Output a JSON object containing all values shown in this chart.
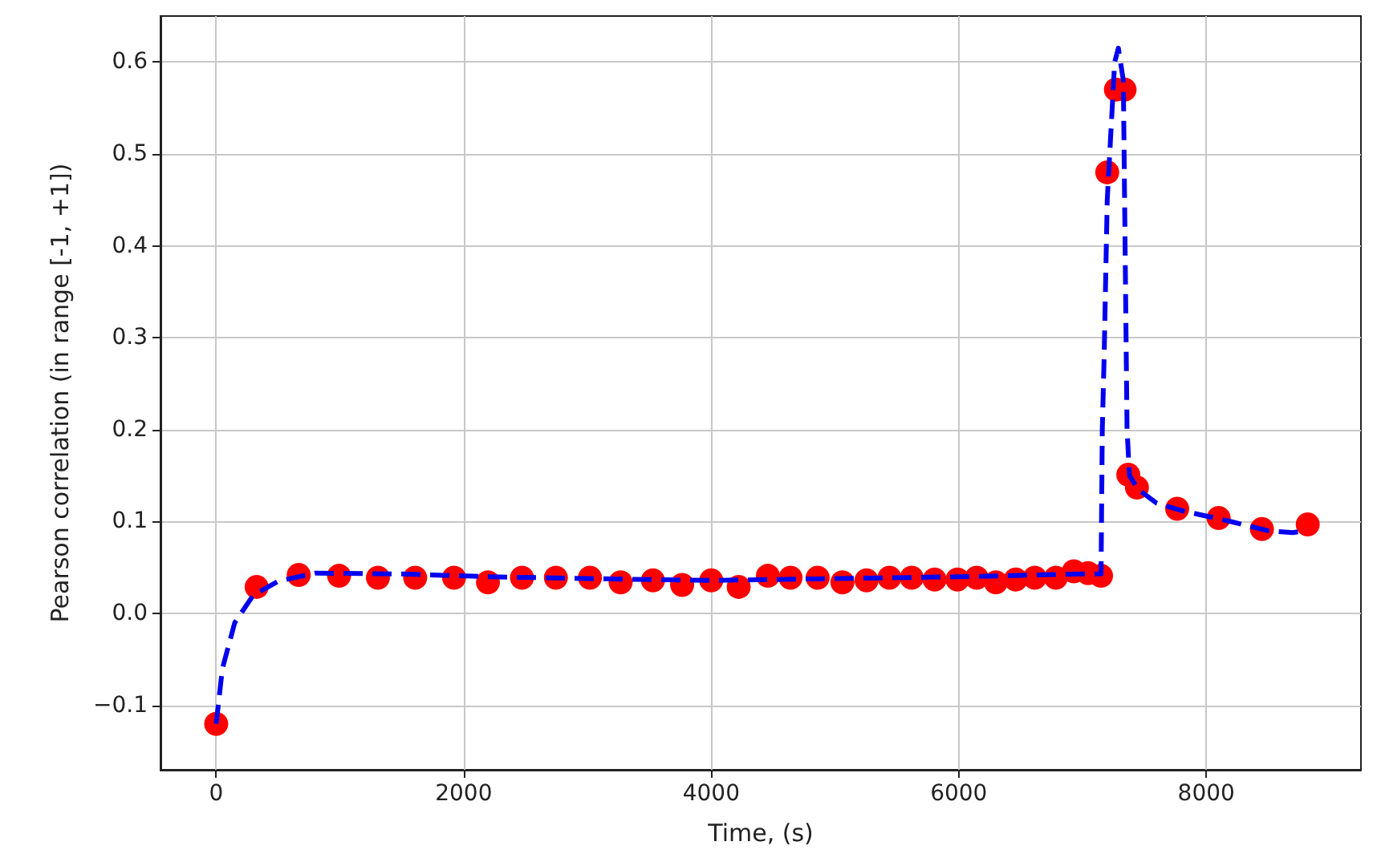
{
  "chart_data": {
    "type": "line",
    "xlabel": "Time, (s)",
    "ylabel": "Pearson correlation (in range [-1, +1])",
    "xlim": [
      -450,
      9250
    ],
    "xticks": [
      0,
      2000,
      4000,
      6000,
      8000
    ],
    "ylim": [
      -0.17,
      0.65
    ],
    "yticks": [
      {
        "value": -0.1,
        "label": "−0.1"
      },
      {
        "value": 0,
        "label": "0.0"
      },
      {
        "value": 0.1,
        "label": "0.1"
      },
      {
        "value": 0.2,
        "label": "0.2"
      },
      {
        "value": 0.3,
        "label": "0.3"
      },
      {
        "value": 0.4,
        "label": "0.4"
      },
      {
        "value": 0.5,
        "label": "0.5"
      },
      {
        "value": 0.6,
        "label": "0.6"
      }
    ],
    "grid": true,
    "series": [
      {
        "color": "#0000ee",
        "line_style": "dashed",
        "marker": "none",
        "x": [
          0,
          50,
          150,
          300,
          500,
          800,
          1500,
          2200,
          3000,
          4000,
          5000,
          6000,
          7000,
          7150,
          7160,
          7175,
          7200,
          7260,
          7290,
          7330,
          7360,
          7380,
          7450,
          7600,
          7800,
          8200,
          8500,
          8700,
          8800
        ],
        "values": [
          -0.12,
          -0.06,
          -0.01,
          0.02,
          0.035,
          0.044,
          0.043,
          0.04,
          0.038,
          0.036,
          0.038,
          0.04,
          0.043,
          0.043,
          0.2,
          0.28,
          0.45,
          0.6,
          0.615,
          0.58,
          0.2,
          0.15,
          0.135,
          0.12,
          0.112,
          0.1,
          0.09,
          0.088,
          0.09
        ]
      },
      {
        "type": "scatter",
        "color": "#ff0000",
        "marker": "circle",
        "x": [
          0,
          327,
          667,
          993,
          1307,
          1608,
          1922,
          2196,
          2471,
          2745,
          3020,
          3268,
          3529,
          3765,
          4000,
          4222,
          4458,
          4641,
          4860,
          5060,
          5255,
          5440,
          5620,
          5805,
          5990,
          6145,
          6300,
          6460,
          6615,
          6785,
          6930,
          7045,
          7150,
          7200,
          7270,
          7340,
          7370,
          7440,
          7765,
          8100,
          8450,
          8820
        ],
        "values": [
          -0.12,
          0.029,
          0.042,
          0.041,
          0.039,
          0.039,
          0.039,
          0.034,
          0.039,
          0.039,
          0.039,
          0.034,
          0.036,
          0.031,
          0.036,
          0.029,
          0.041,
          0.039,
          0.039,
          0.034,
          0.036,
          0.039,
          0.039,
          0.037,
          0.037,
          0.039,
          0.034,
          0.037,
          0.039,
          0.039,
          0.046,
          0.044,
          0.041,
          0.48,
          0.57,
          0.57,
          0.151,
          0.137,
          0.114,
          0.104,
          0.092,
          0.097
        ]
      }
    ]
  }
}
